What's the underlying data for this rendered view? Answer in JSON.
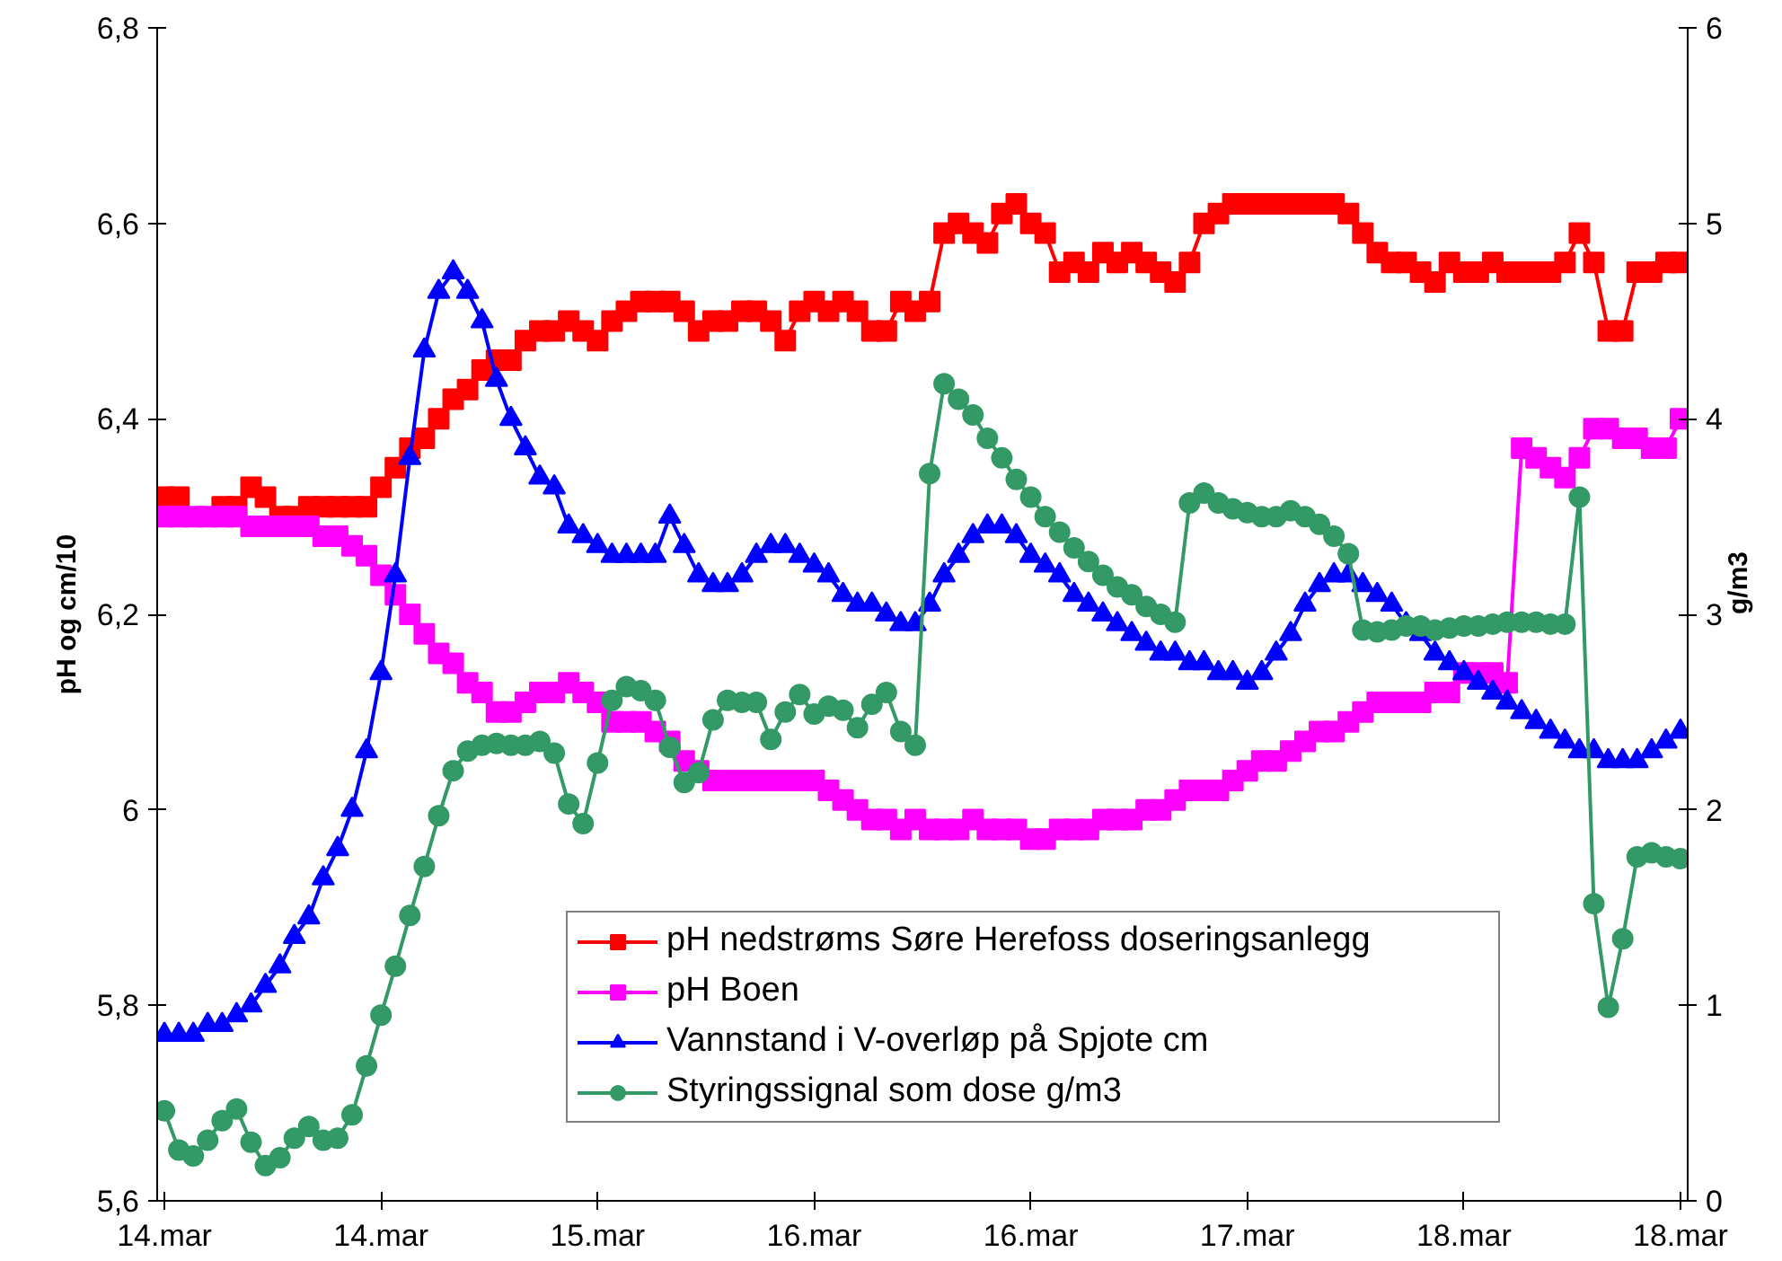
{
  "chart_data": {
    "type": "line",
    "ylabel": "pH og cm/10",
    "y2label": "g/m3",
    "legend": "bottom",
    "line_style": "solid",
    "categories": [
      "14.mar",
      null,
      null,
      null,
      null,
      null,
      null,
      null,
      null,
      null,
      null,
      null,
      null,
      null,
      null,
      "14.mar",
      null,
      null,
      null,
      null,
      null,
      null,
      null,
      null,
      null,
      null,
      null,
      null,
      null,
      null,
      "15.mar",
      null,
      null,
      null,
      null,
      null,
      null,
      null,
      null,
      null,
      null,
      null,
      null,
      null,
      null,
      "16.mar",
      null,
      null,
      null,
      null,
      null,
      null,
      null,
      null,
      null,
      null,
      null,
      null,
      null,
      null,
      "16.mar",
      null,
      null,
      null,
      null,
      null,
      null,
      null,
      null,
      null,
      null,
      null,
      null,
      null,
      null,
      "17.mar",
      null,
      null,
      null,
      null,
      null,
      null,
      null,
      null,
      null,
      null,
      null,
      null,
      null,
      null,
      "18.mar",
      null,
      null,
      null,
      null,
      null,
      null,
      null,
      null,
      null,
      null,
      null,
      null,
      null,
      null,
      "18.mar"
    ],
    "ylim": [
      5.6,
      6.8
    ],
    "yticks": [
      {
        "value": 5.6,
        "label": "5,6"
      },
      {
        "value": 5.8,
        "label": "5,8"
      },
      6,
      {
        "value": 6.2,
        "label": "6,2"
      },
      {
        "value": 6.4,
        "label": "6,4"
      },
      {
        "value": 6.6,
        "label": "6,6"
      },
      {
        "value": 6.8,
        "label": "6,8"
      }
    ],
    "y2lim": [
      0,
      6
    ],
    "y2ticks": [
      0,
      1,
      2,
      3,
      4,
      5,
      6
    ],
    "series": [
      {
        "name": "pH nedstrøms Søre Herefoss doseringsanlegg",
        "color": "#ff0000",
        "marker": "square",
        "values": [
          6.32,
          6.32,
          null,
          null,
          6.31,
          6.31,
          6.33,
          6.32,
          6.3,
          6.3,
          6.31,
          6.31,
          6.31,
          6.31,
          6.31,
          6.33,
          6.35,
          6.37,
          6.38,
          6.4,
          6.42,
          6.43,
          6.45,
          6.46,
          6.46,
          6.48,
          6.49,
          6.49,
          6.5,
          6.49,
          6.48,
          6.5,
          6.51,
          6.52,
          6.52,
          6.52,
          6.51,
          6.49,
          6.5,
          6.5,
          6.51,
          6.51,
          6.5,
          6.48,
          6.51,
          6.52,
          6.51,
          6.52,
          6.51,
          6.49,
          6.49,
          6.52,
          6.51,
          6.52,
          6.59,
          6.6,
          6.59,
          6.58,
          6.61,
          6.62,
          6.6,
          6.59,
          6.55,
          6.56,
          6.55,
          6.57,
          6.56,
          6.57,
          6.56,
          6.55,
          6.54,
          6.56,
          6.6,
          6.61,
          6.62,
          6.62,
          6.62,
          6.62,
          6.62,
          6.62,
          6.62,
          6.62,
          6.61,
          6.59,
          6.57,
          6.56,
          6.56,
          6.55,
          6.54,
          6.56,
          6.55,
          6.55,
          6.56,
          6.55,
          6.55,
          6.55,
          6.55,
          6.56,
          6.59,
          6.56,
          6.49,
          6.49,
          6.55,
          6.55,
          6.56,
          6.56
        ]
      },
      {
        "name": "pH Boen",
        "color": "#ff00ff",
        "marker": "square",
        "values": [
          6.3,
          6.3,
          6.3,
          6.3,
          6.3,
          6.3,
          6.29,
          6.29,
          6.29,
          6.29,
          6.29,
          6.28,
          6.28,
          6.27,
          6.26,
          6.24,
          6.22,
          6.2,
          6.18,
          6.16,
          6.15,
          6.13,
          6.12,
          6.1,
          6.1,
          6.11,
          6.12,
          6.12,
          6.13,
          6.12,
          6.11,
          6.09,
          6.09,
          6.09,
          6.08,
          6.07,
          6.05,
          6.04,
          6.03,
          6.03,
          6.03,
          6.03,
          6.03,
          6.03,
          6.03,
          6.03,
          6.02,
          6.01,
          6.0,
          5.99,
          5.99,
          5.98,
          5.99,
          5.98,
          5.98,
          5.98,
          5.99,
          5.98,
          5.98,
          5.98,
          5.97,
          5.97,
          5.98,
          5.98,
          5.98,
          5.99,
          5.99,
          5.99,
          6.0,
          6.0,
          6.01,
          6.02,
          6.02,
          6.02,
          6.03,
          6.04,
          6.05,
          6.05,
          6.06,
          6.07,
          6.08,
          6.08,
          6.09,
          6.1,
          6.11,
          6.11,
          6.11,
          6.11,
          6.12,
          6.12,
          6.14,
          6.14,
          6.14,
          6.13,
          6.37,
          6.36,
          6.35,
          6.34,
          6.36,
          6.39,
          6.39,
          6.38,
          6.38,
          6.37,
          6.37,
          6.4
        ]
      },
      {
        "name": "Vannstand i V-overløp på Spjote cm",
        "color": "#0000ff",
        "marker": "triangle",
        "values": [
          5.77,
          5.77,
          5.77,
          5.78,
          5.78,
          5.79,
          5.8,
          5.82,
          5.84,
          5.87,
          5.89,
          5.93,
          5.96,
          6.0,
          6.06,
          6.14,
          6.24,
          6.36,
          6.47,
          6.53,
          6.55,
          6.53,
          6.5,
          6.44,
          6.4,
          6.37,
          6.34,
          6.33,
          6.29,
          6.28,
          6.27,
          6.26,
          6.26,
          6.26,
          6.26,
          6.3,
          6.27,
          6.24,
          6.23,
          6.23,
          6.24,
          6.26,
          6.27,
          6.27,
          6.26,
          6.25,
          6.24,
          6.22,
          6.21,
          6.21,
          6.2,
          6.19,
          6.19,
          6.21,
          6.24,
          6.26,
          6.28,
          6.29,
          6.29,
          6.28,
          6.26,
          6.25,
          6.24,
          6.22,
          6.21,
          6.2,
          6.19,
          6.18,
          6.17,
          6.16,
          6.16,
          6.15,
          6.15,
          6.14,
          6.14,
          6.13,
          6.14,
          6.16,
          6.18,
          6.21,
          6.23,
          6.24,
          6.24,
          6.23,
          6.22,
          6.21,
          6.19,
          6.18,
          6.16,
          6.15,
          6.14,
          6.13,
          6.12,
          6.11,
          6.1,
          6.09,
          6.08,
          6.07,
          6.06,
          6.06,
          6.05,
          6.05,
          6.05,
          6.06,
          6.07,
          6.08
        ]
      },
      {
        "name": "Styringssignal som dose g/m3",
        "color": "#339966",
        "marker": "circle",
        "axis": "y2",
        "values": [
          0.46,
          0.26,
          0.23,
          0.31,
          0.41,
          0.47,
          0.3,
          0.18,
          0.22,
          0.32,
          0.38,
          0.31,
          0.32,
          0.44,
          0.69,
          0.95,
          1.2,
          1.46,
          1.71,
          1.97,
          2.2,
          2.3,
          2.33,
          2.34,
          2.33,
          2.33,
          2.35,
          2.29,
          2.03,
          1.93,
          2.24,
          2.56,
          2.63,
          2.61,
          2.56,
          2.32,
          2.14,
          2.19,
          2.46,
          2.56,
          2.55,
          2.55,
          2.36,
          2.5,
          2.59,
          2.49,
          2.53,
          2.51,
          2.42,
          2.54,
          2.6,
          2.4,
          2.33,
          3.72,
          4.18,
          4.1,
          4.02,
          3.9,
          3.8,
          3.69,
          3.6,
          3.5,
          3.42,
          3.34,
          3.27,
          3.2,
          3.14,
          3.1,
          3.04,
          3.0,
          2.96,
          3.57,
          3.62,
          3.57,
          3.54,
          3.52,
          3.5,
          3.5,
          3.53,
          3.5,
          3.46,
          3.4,
          3.31,
          2.92,
          2.91,
          2.92,
          2.94,
          2.94,
          2.92,
          2.93,
          2.94,
          2.94,
          2.95,
          2.96,
          2.96,
          2.96,
          2.95,
          2.95,
          3.6,
          1.52,
          0.99,
          1.34,
          1.76,
          1.78,
          1.76,
          1.75
        ]
      }
    ]
  }
}
